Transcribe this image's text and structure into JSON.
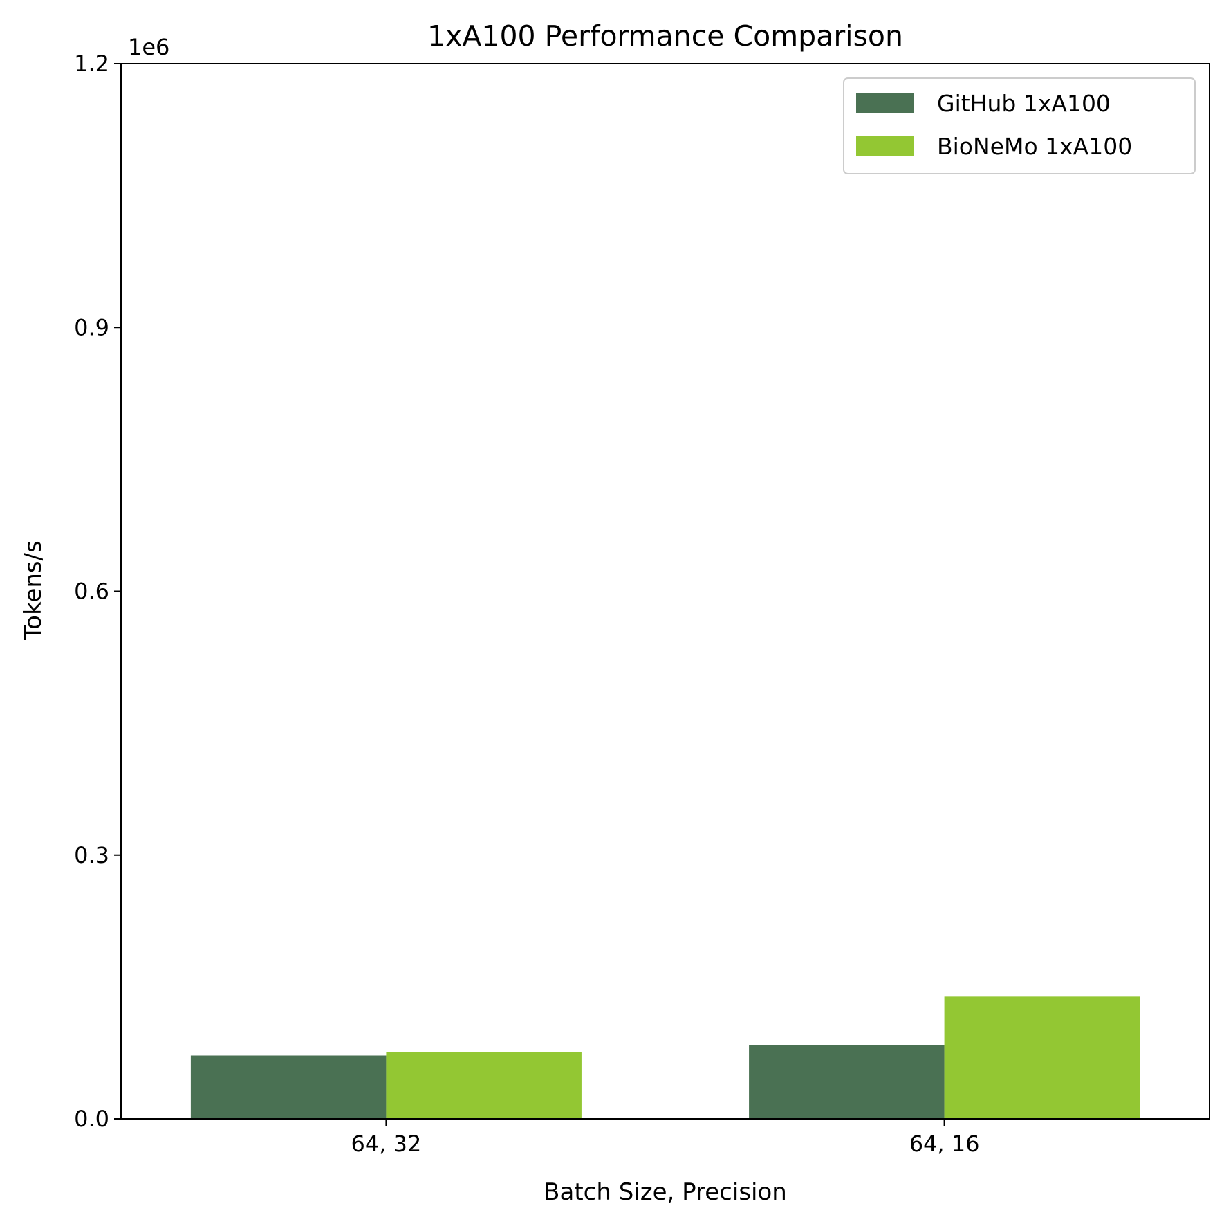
{
  "chart_data": {
    "type": "bar",
    "title": "1xA100 Performance Comparison",
    "xlabel": "Batch Size, Precision",
    "ylabel": "Tokens/s",
    "y_offset_label": "1e6",
    "categories": [
      "64, 32",
      "64, 16"
    ],
    "series": [
      {
        "name": "GitHub 1xA100",
        "color": "#4a7153",
        "values": [
          72000,
          84000
        ]
      },
      {
        "name": "BioNeMo 1xA100",
        "color": "#93c733",
        "values": [
          76000,
          139000
        ]
      }
    ],
    "ylim": [
      0,
      1200000
    ],
    "y_ticks": [
      {
        "value": 0,
        "label": "0.0"
      },
      {
        "value": 300000,
        "label": "0.3"
      },
      {
        "value": 600000,
        "label": "0.6"
      },
      {
        "value": 900000,
        "label": "0.9"
      },
      {
        "value": 1200000,
        "label": "1.2"
      }
    ],
    "legend_position": "top-right",
    "grid": false
  }
}
